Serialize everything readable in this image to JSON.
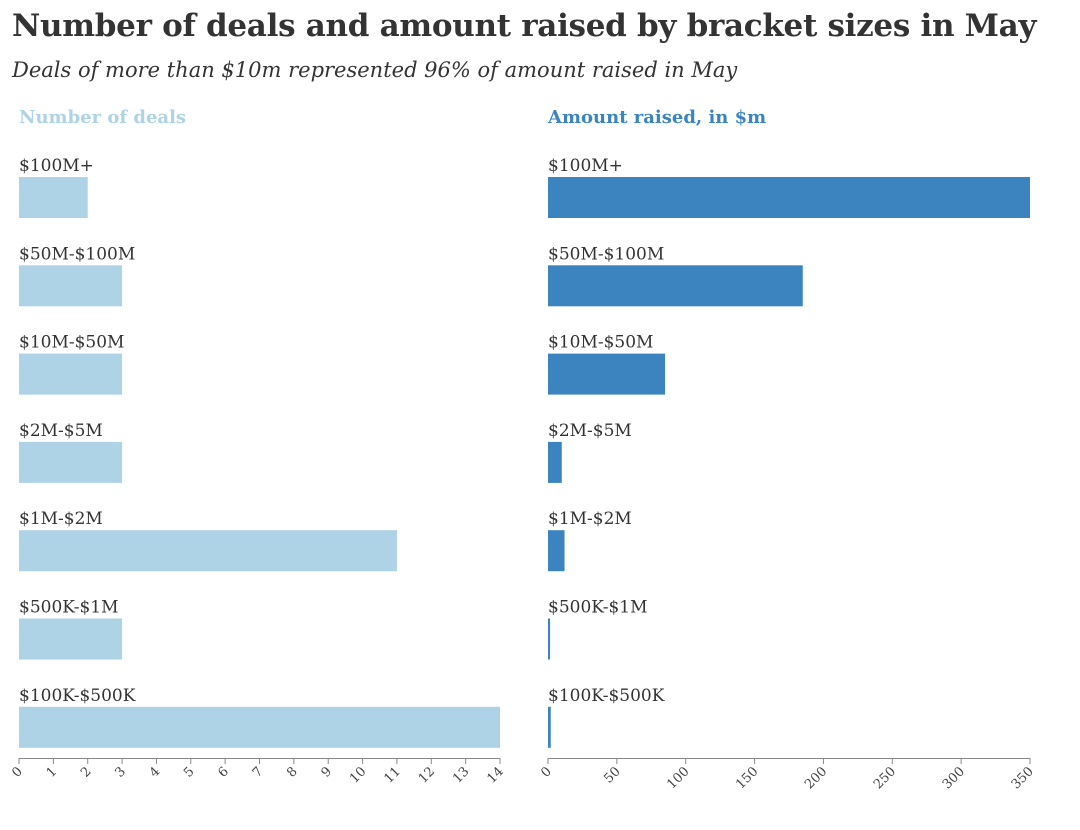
{
  "title": "Number of deals and amount raised by bracket sizes in May",
  "subtitle": "Deals of more than $10m represented 96% of amount raised in May",
  "chart_data": [
    {
      "type": "bar",
      "orientation": "horizontal",
      "title": "Number of deals",
      "categories": [
        "$100M+",
        "$50M-$100M",
        "$10M-$50M",
        "$2M-$5M",
        "$1M-$2M",
        "$500K-$1M",
        "$100K-$500K"
      ],
      "values": [
        2,
        3,
        3,
        3,
        11,
        3,
        14
      ],
      "xlim": [
        0,
        14
      ],
      "ticks": [
        0,
        1,
        2,
        3,
        4,
        5,
        6,
        7,
        8,
        9,
        10,
        11,
        12,
        13,
        14
      ],
      "color": "#aed2e6",
      "grid": false
    },
    {
      "type": "bar",
      "orientation": "horizontal",
      "title": "Amount raised, in $m",
      "categories": [
        "$100M+",
        "$50M-$100M",
        "$10M-$50M",
        "$2M-$5M",
        "$1M-$2M",
        "$500K-$1M",
        "$100K-$500K"
      ],
      "values": [
        350,
        185,
        85,
        10,
        12,
        1.5,
        2
      ],
      "xlim": [
        0,
        350
      ],
      "ticks": [
        0,
        50,
        100,
        150,
        200,
        250,
        300,
        350
      ],
      "color": "#3b84bf",
      "grid": false
    }
  ]
}
